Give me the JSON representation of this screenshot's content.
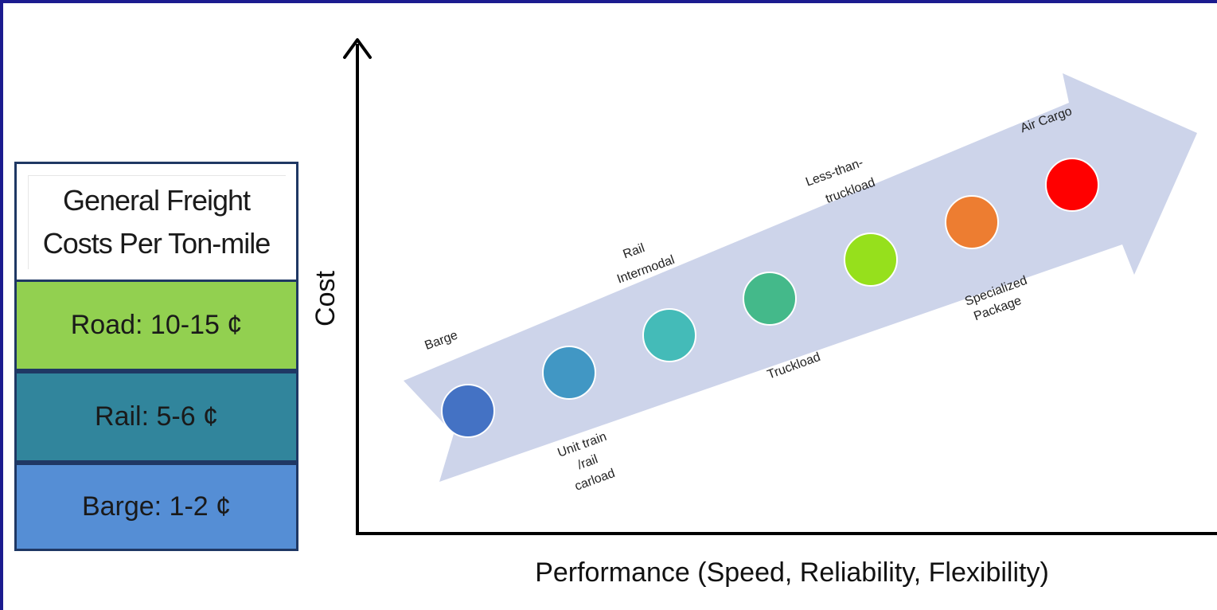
{
  "cost_table": {
    "header_line1": "General Freight",
    "header_line2": "Costs Per Ton-mile",
    "rows": [
      {
        "label": "Road:  10-15 ¢",
        "color": "#92d050"
      },
      {
        "label": "Rail:  5-6 ¢",
        "color": "#31859c"
      },
      {
        "label": "Barge:  1-2 ¢",
        "color": "#558ed5"
      }
    ]
  },
  "axes": {
    "y_label": "Cost",
    "x_label": "Performance (Speed, Reliability, Flexibility)"
  },
  "arrow_color": "#cdd4ea",
  "modes": [
    {
      "name": "Barge",
      "color": "#4472c4"
    },
    {
      "name": "Unit train /rail carload",
      "color": "#4197c4"
    },
    {
      "name": "Rail Intermodal",
      "color": "#44bbb8"
    },
    {
      "name": "Truckload",
      "color": "#44b98a"
    },
    {
      "name": "Less-than-truckload",
      "color": "#96e01c"
    },
    {
      "name": "Specialized Package",
      "color": "#ed7d31"
    },
    {
      "name": "Air Cargo",
      "color": "#ff0000"
    }
  ],
  "labels": {
    "barge": "Barge",
    "unit_train_1": "Unit train",
    "unit_train_2": "/rail",
    "unit_train_3": "carload",
    "rail_intermodal_1": "Rail",
    "rail_intermodal_2": "Intermodal",
    "truckload": "Truckload",
    "ltl_1": "Less-than-",
    "ltl_2": "truckload",
    "specialized_1": "Specialized",
    "specialized_2": "Package",
    "air_cargo": "Air Cargo"
  }
}
